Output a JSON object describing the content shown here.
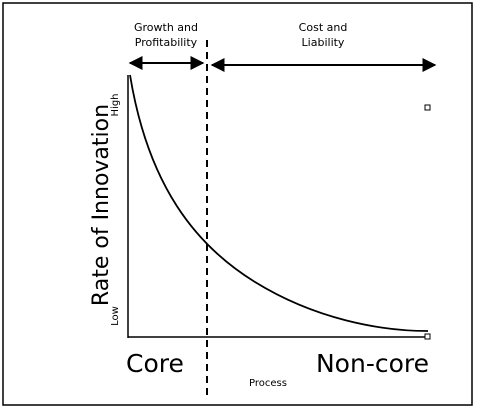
{
  "regions": [
    {
      "lines": [
        "Growth and",
        "Profitability"
      ]
    },
    {
      "lines": [
        "Cost and",
        "Liability"
      ]
    }
  ],
  "axes": {
    "y_label": "Rate of Innovation",
    "y_high": "High",
    "y_low": "Low",
    "x_label": "Process",
    "x_left": "Core",
    "x_right": "Non-core"
  }
}
